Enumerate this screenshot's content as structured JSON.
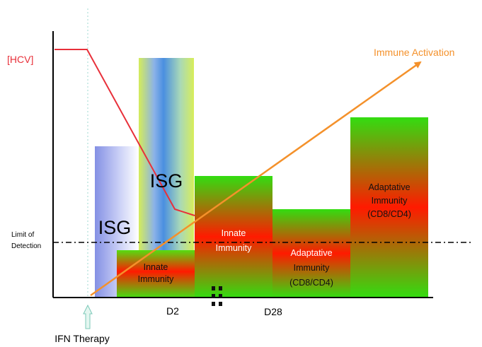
{
  "labels": {
    "hcv": "[HCV]",
    "immune_activation": "Immune Activation",
    "limit_line1": "Limit of",
    "limit_line2": "Detection",
    "isg_small": "ISG",
    "isg_large": "ISG",
    "innate_low_1": "Innate",
    "innate_low_2": "Immunity",
    "innate_mid_1": "Innate",
    "innate_mid_2": "Immunity",
    "adapt_low_1": "Adaptative",
    "adapt_low_2": "Immunity",
    "adapt_low_3": "(CD8/CD4)",
    "adapt_high_1": "Adaptative",
    "adapt_high_2": "Immunity",
    "adapt_high_3": "(CD8/CD4)",
    "d2": "D2",
    "d28": "D28",
    "ifn_therapy": "IFN Therapy"
  },
  "colors": {
    "hcv": "#e8303a",
    "immune_activation": "#f4912b",
    "axis": "#000000",
    "isg_blue": "#8a9ae8",
    "isg_green": "#d8ee5a",
    "immunity_green": "#33dd11",
    "immunity_red": "#ff1a00",
    "therapy_arrow": "#dff3ee"
  }
}
